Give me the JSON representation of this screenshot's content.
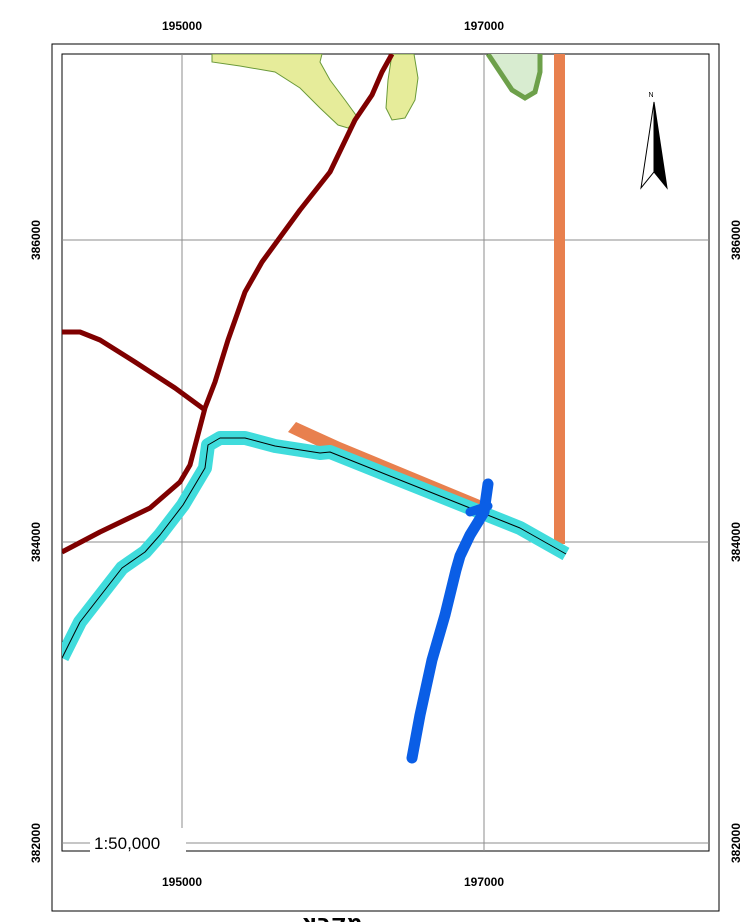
{
  "map": {
    "x_ticks": [
      "195000",
      "197000"
    ],
    "y_ticks": [
      "386000",
      "384000",
      "382000"
    ],
    "scale_label": "1:50,000",
    "north_label": "N",
    "legend_heading": "מקרא",
    "colors": {
      "frame": "#000000",
      "grid": "#8c8c8c",
      "road_dark_red": "#7f0000",
      "road_cyan": "#40dcdc",
      "road_cyan_centerline": "#000000",
      "stream_blue": "#0a5ee6",
      "orange_strip": "#e8804e",
      "yellow_polygon": "#e6ec9a",
      "green_outline_polygon": "#6da04a",
      "green_fill_polygon": "#d8ecd0"
    }
  }
}
